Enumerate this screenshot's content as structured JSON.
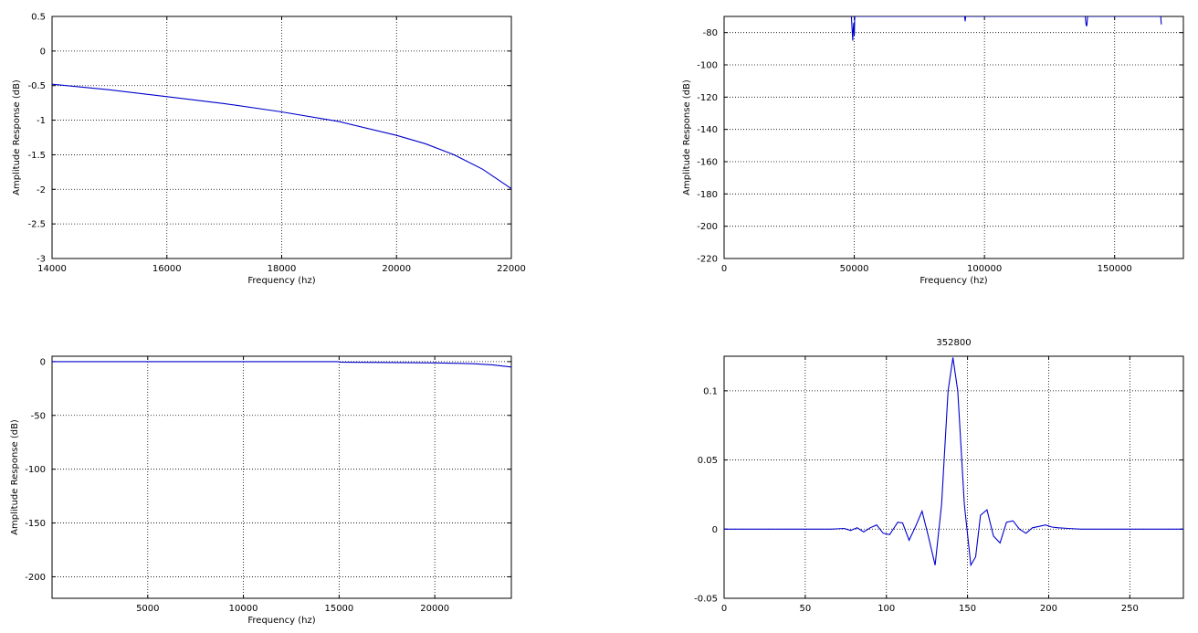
{
  "chart_data": [
    {
      "type": "line",
      "title": "",
      "xlabel": "Frequency (hz)",
      "ylabel": "Amplitude Response (dB)",
      "xlim": [
        14000,
        22000
      ],
      "ylim": [
        -3,
        0.5
      ],
      "xticks": [
        14000,
        16000,
        18000,
        20000,
        22000
      ],
      "yticks": [
        0.5,
        0,
        -0.5,
        -1,
        -1.5,
        -2,
        -2.5,
        -3
      ],
      "xtick_labels": [
        "14000",
        "16000",
        "18000",
        "20000",
        "22000"
      ],
      "ytick_labels": [
        "0.5",
        "0",
        "-0.5",
        "-1",
        "-1.5",
        "-2",
        "-2.5",
        "-3"
      ],
      "grid": true,
      "series": [
        {
          "color": "#0000cc",
          "x": [
            14000,
            15000,
            16000,
            17000,
            18000,
            19000,
            20000,
            20500,
            21000,
            21500,
            22000
          ],
          "y": [
            -0.48,
            -0.56,
            -0.66,
            -0.76,
            -0.88,
            -1.02,
            -1.22,
            -1.34,
            -1.5,
            -1.71,
            -1.99
          ]
        }
      ]
    },
    {
      "type": "line",
      "title": "",
      "xlabel": "Frequency (hz)",
      "ylabel": "Amplitude Response (dB)",
      "xlim": [
        0,
        176400
      ],
      "ylim": [
        -220,
        -70
      ],
      "xticks": [
        0,
        50000,
        100000,
        150000
      ],
      "yticks": [
        -80,
        -100,
        -120,
        -140,
        -160,
        -180,
        -200,
        -220
      ],
      "xtick_labels": [
        "0",
        "50000",
        "100000",
        "150000"
      ],
      "ytick_labels": [
        "-80",
        "-100",
        "-120",
        "-140",
        "-160",
        "-180",
        "-200",
        "-220"
      ],
      "grid": true,
      "series": [
        {
          "color": "#0000cc",
          "x": [
            48900,
            49200,
            49400,
            49600,
            49800,
            50000,
            50200,
            92400,
            92600,
            92800,
            138700,
            139000,
            139300,
            139600,
            167700,
            167900
          ],
          "y": [
            -70,
            -79,
            -85,
            -78,
            -74,
            -82,
            -70,
            -70,
            -73,
            -70,
            -70,
            -75,
            -76,
            -70,
            -70,
            -75
          ]
        }
      ]
    },
    {
      "type": "line",
      "title": "",
      "xlabel": "Frequency (hz)",
      "ylabel": "Amplitude Response (dB)",
      "xlim": [
        0,
        24000
      ],
      "ylim": [
        -220,
        5
      ],
      "xticks": [
        5000,
        10000,
        15000,
        20000
      ],
      "yticks": [
        0,
        -50,
        -100,
        -150,
        -200
      ],
      "xtick_labels": [
        "5000",
        "10000",
        "15000",
        "20000"
      ],
      "ytick_labels": [
        "0",
        "-50",
        "-100",
        "-150",
        "-200"
      ],
      "grid": true,
      "series": [
        {
          "color": "#0000cc",
          "x": [
            0,
            5000,
            10000,
            14950,
            15050,
            18000,
            20000,
            21000,
            22000,
            23000,
            24000
          ],
          "y": [
            0,
            0,
            0,
            0,
            -0.5,
            -0.9,
            -1.2,
            -1.5,
            -2.0,
            -3.0,
            -5.0
          ]
        }
      ]
    },
    {
      "type": "line",
      "title": "352800",
      "xlabel": "",
      "ylabel": "",
      "xlim": [
        0,
        283
      ],
      "ylim": [
        -0.05,
        0.125
      ],
      "xticks": [
        0,
        50,
        100,
        150,
        200,
        250
      ],
      "yticks": [
        0.1,
        0.05,
        0,
        -0.05
      ],
      "xtick_labels": [
        "0",
        "50",
        "100",
        "150",
        "200",
        "250"
      ],
      "ytick_labels": [
        "0.1",
        "0.05",
        "0",
        "-0.05"
      ],
      "grid": true,
      "series": [
        {
          "color": "#0000cc",
          "x": [
            0,
            66,
            74,
            78,
            82,
            86,
            90,
            94,
            98,
            102,
            107,
            110,
            114,
            118,
            122,
            126,
            130,
            134,
            138,
            141,
            144,
            148,
            152,
            155,
            158,
            162,
            166,
            170,
            174,
            178,
            182,
            186,
            190,
            194,
            198,
            202,
            206,
            212,
            220,
            283
          ],
          "y": [
            0,
            0,
            0.0005,
            -0.001,
            0.001,
            -0.002,
            0.001,
            0.003,
            -0.003,
            -0.004,
            0.005,
            0.0045,
            -0.008,
            0.002,
            0.013,
            -0.006,
            -0.026,
            0.018,
            0.1,
            0.124,
            0.1,
            0.018,
            -0.026,
            -0.02,
            0.01,
            0.014,
            -0.005,
            -0.01,
            0.005,
            0.006,
            0.0,
            -0.003,
            0.001,
            0.002,
            0.003,
            0.0015,
            0.001,
            0.0005,
            0.0,
            0.0
          ]
        }
      ]
    }
  ]
}
